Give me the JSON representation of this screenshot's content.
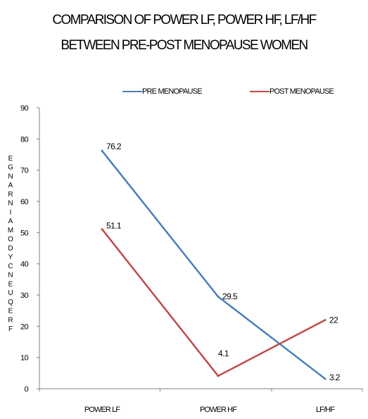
{
  "chart_data": {
    "type": "line",
    "title_lines": [
      "COMPARISON OF POWER LF, POWER HF, LF/HF",
      "BETWEEN PRE-POST MENOPAUSE WOMEN"
    ],
    "categories": [
      "POWER LF",
      "POWER HF",
      "LF/HF"
    ],
    "series": [
      {
        "name": "PRE MENOPAUSE",
        "color": "#4a7ebb",
        "values": [
          76.2,
          29.5,
          3.2
        ],
        "labels": [
          "76.2",
          "29.5",
          "3.2"
        ]
      },
      {
        "name": "POST MENOPAUSE",
        "color": "#be4b48",
        "values": [
          51.1,
          4.1,
          22
        ],
        "labels": [
          "51.1",
          "4.1",
          "22"
        ]
      }
    ],
    "ylim": [
      0,
      90
    ],
    "yticks": [
      0,
      10,
      20,
      30,
      40,
      50,
      60,
      70,
      80,
      90
    ],
    "ylabel": "FREQUENCY DOMAIN RANGE",
    "grid": false,
    "legend_position": "top"
  }
}
